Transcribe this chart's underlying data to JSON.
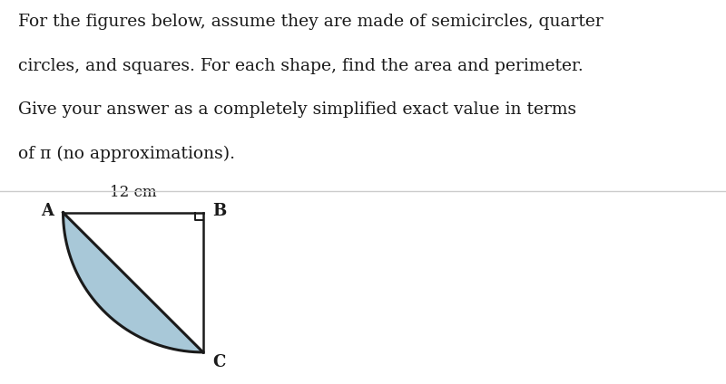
{
  "text_lines": [
    "For the figures below, assume they are made of semicircles, quarter",
    "circles, and squares. For each shape, find the area and perimeter.",
    "Give your answer as a completely simplified exact value in terms",
    "of π (no approximations)."
  ],
  "label_A": "A",
  "label_B": "B",
  "label_C": "C",
  "dimension_label": "12 cm",
  "shape_fill_color": "#a8c8d8",
  "shape_edge_color": "#1a1a1a",
  "background_color": "#ffffff",
  "divider_color": "#cccccc",
  "text_color": "#1a1a1a",
  "text_fontsize": 13.5,
  "label_fontsize": 13,
  "dim_fontsize": 12
}
